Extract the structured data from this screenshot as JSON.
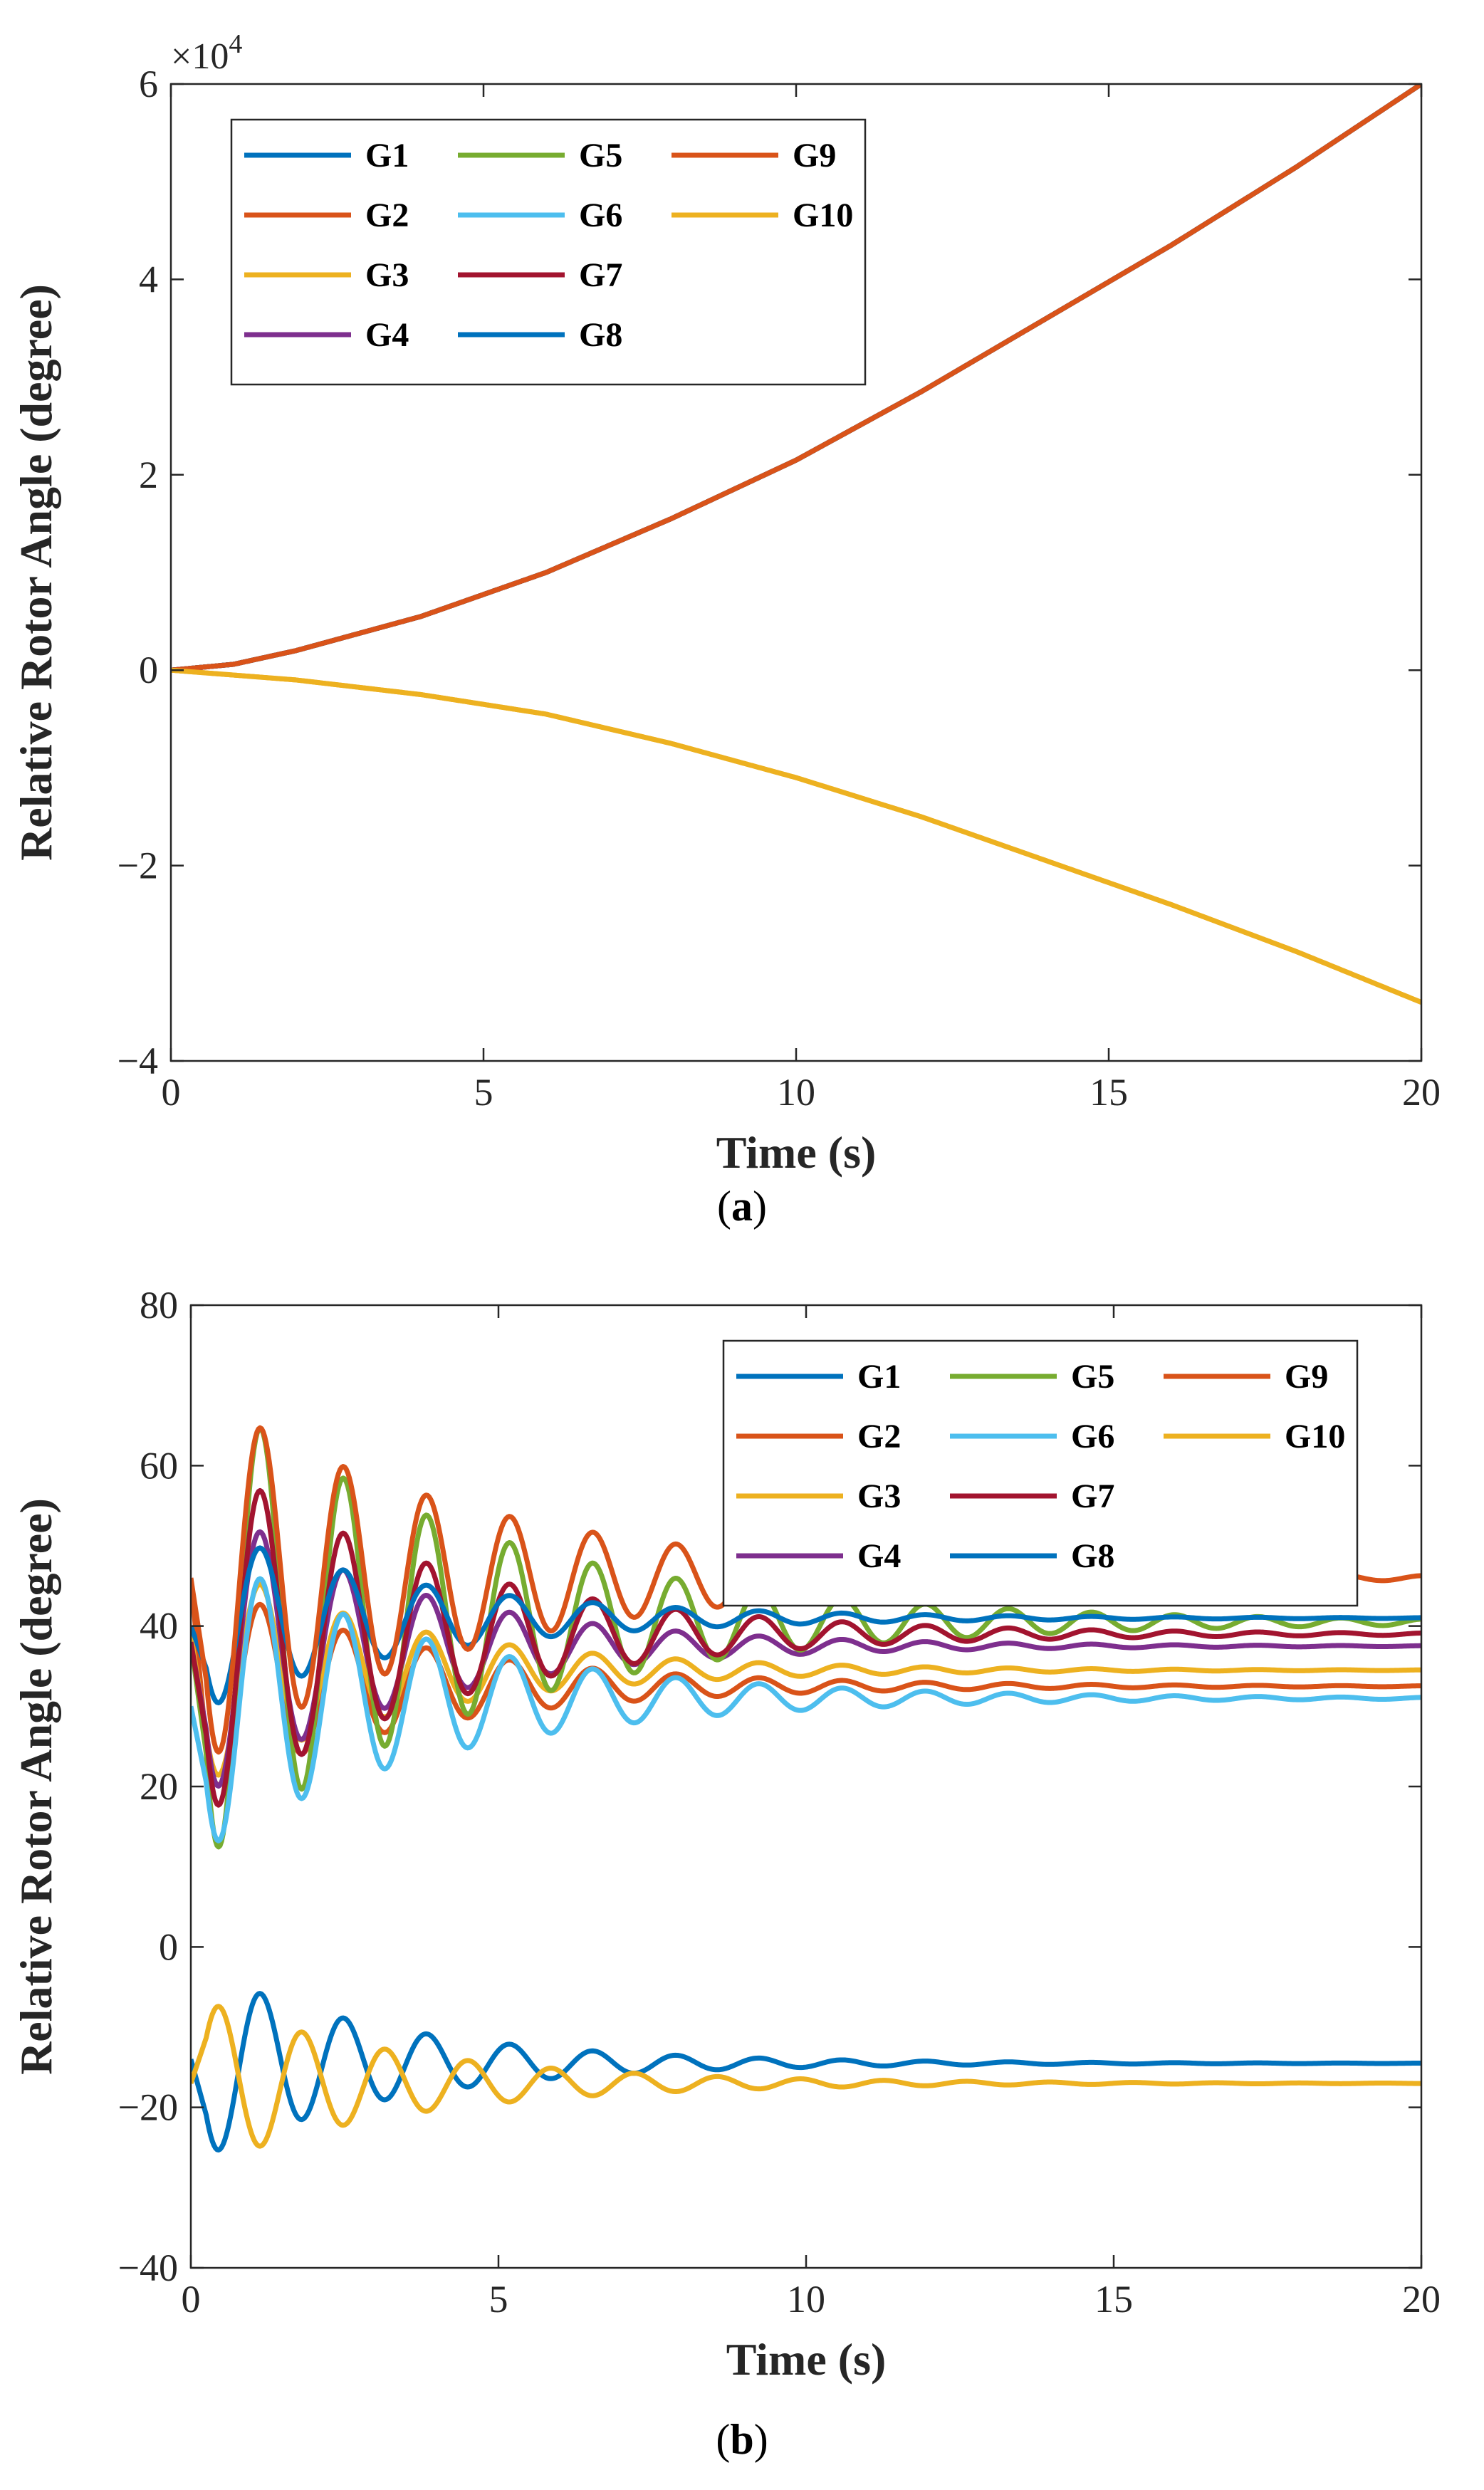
{
  "chart_data": [
    {
      "type": "line",
      "panel_label": "a",
      "xlabel": "Time (s)",
      "ylabel": "Relative Rotor Angle (degree)",
      "xlim": [
        0,
        20
      ],
      "ylim": [
        -40000,
        60000
      ],
      "xticks": [
        0,
        5,
        10,
        15,
        20
      ],
      "yticks": [
        -40000,
        -20000,
        0,
        20000,
        40000,
        60000
      ],
      "ytick_labels": [
        "−4",
        "−2",
        "0",
        "2",
        "4",
        "6"
      ],
      "y_exponent_label": "×10",
      "y_exponent_power": "4",
      "legend_position": "top-left",
      "series": [
        {
          "name": "G1",
          "color": "#0072BD",
          "x": [
            0,
            1,
            2,
            4,
            6,
            8,
            10,
            12,
            14,
            16,
            18,
            20
          ],
          "values": [
            0,
            600,
            2000,
            5500,
            10000,
            15500,
            21500,
            28500,
            36000,
            43500,
            51500,
            60000
          ]
        },
        {
          "name": "G2",
          "color": "#D95319",
          "x": [
            0,
            1,
            2,
            4,
            6,
            8,
            10,
            12,
            14,
            16,
            18,
            20
          ],
          "values": [
            0,
            600,
            2000,
            5500,
            10000,
            15500,
            21500,
            28500,
            36000,
            43500,
            51500,
            60000
          ]
        },
        {
          "name": "G3",
          "color": "#EDB120",
          "x": [
            0,
            1,
            2,
            4,
            6,
            8,
            10,
            12,
            14,
            16,
            18,
            20
          ],
          "values": [
            0,
            -500,
            -1000,
            -2500,
            -4500,
            -7500,
            -11000,
            -15000,
            -19500,
            -24000,
            -28800,
            -34000
          ]
        },
        {
          "name": "G4",
          "color": "#7E2F8E",
          "x": [
            0,
            1,
            2,
            4,
            6,
            8,
            10,
            12,
            14,
            16,
            18,
            20
          ],
          "values": [
            0,
            600,
            2000,
            5500,
            10000,
            15500,
            21500,
            28500,
            36000,
            43500,
            51500,
            60000
          ]
        },
        {
          "name": "G5",
          "color": "#77AC30",
          "x": [
            0,
            1,
            2,
            4,
            6,
            8,
            10,
            12,
            14,
            16,
            18,
            20
          ],
          "values": [
            0,
            600,
            2000,
            5500,
            10000,
            15500,
            21500,
            28500,
            36000,
            43500,
            51500,
            60000
          ]
        },
        {
          "name": "G6",
          "color": "#4DBEEE",
          "x": [
            0,
            1,
            2,
            4,
            6,
            8,
            10,
            12,
            14,
            16,
            18,
            20
          ],
          "values": [
            0,
            600,
            2000,
            5500,
            10000,
            15500,
            21500,
            28500,
            36000,
            43500,
            51500,
            60000
          ]
        },
        {
          "name": "G7",
          "color": "#A2142F",
          "x": [
            0,
            1,
            2,
            4,
            6,
            8,
            10,
            12,
            14,
            16,
            18,
            20
          ],
          "values": [
            0,
            600,
            2000,
            5500,
            10000,
            15500,
            21500,
            28500,
            36000,
            43500,
            51500,
            60000
          ]
        },
        {
          "name": "G8",
          "color": "#0072BD",
          "x": [
            0,
            1,
            2,
            4,
            6,
            8,
            10,
            12,
            14,
            16,
            18,
            20
          ],
          "values": [
            0,
            600,
            2000,
            5500,
            10000,
            15500,
            21500,
            28500,
            36000,
            43500,
            51500,
            60000
          ]
        },
        {
          "name": "G9",
          "color": "#D95319",
          "x": [
            0,
            1,
            2,
            4,
            6,
            8,
            10,
            12,
            14,
            16,
            18,
            20
          ],
          "values": [
            0,
            600,
            2000,
            5500,
            10000,
            15500,
            21500,
            28500,
            36000,
            43500,
            51500,
            60000
          ]
        },
        {
          "name": "G10",
          "color": "#EDB120",
          "x": [
            0,
            1,
            2,
            4,
            6,
            8,
            10,
            12,
            14,
            16,
            18,
            20
          ],
          "values": [
            0,
            -500,
            -1000,
            -2500,
            -4500,
            -7500,
            -11000,
            -15000,
            -19500,
            -24000,
            -28800,
            -34000
          ]
        }
      ]
    },
    {
      "type": "line",
      "panel_label": "b",
      "xlabel": "Time (s)",
      "ylabel": "Relative Rotor Angle (degree)",
      "xlim": [
        0,
        20
      ],
      "ylim": [
        -40,
        80
      ],
      "xticks": [
        0,
        5,
        10,
        15,
        20
      ],
      "yticks": [
        -40,
        -20,
        0,
        20,
        40,
        60,
        80
      ],
      "ytick_labels": [
        "−40",
        "−20",
        "0",
        "20",
        "40",
        "60",
        "80"
      ],
      "legend_position": "top-right",
      "series": [
        {
          "name": "G1",
          "color": "#0072BD",
          "model": {
            "final": -14.5,
            "a0": 12.5,
            "phase": 1.0,
            "freq": 0.74,
            "decay": 0.32,
            "init": -14
          }
        },
        {
          "name": "G2",
          "color": "#D95319",
          "model": {
            "final": 32.5,
            "a0": 14,
            "phase": 1.0,
            "freq": 0.74,
            "decay": 0.28,
            "init": 46
          }
        },
        {
          "name": "G3",
          "color": "#EDB120",
          "model": {
            "final": 34.5,
            "a0": 15,
            "phase": 1.0,
            "freq": 0.74,
            "decay": 0.3,
            "init": 39
          }
        },
        {
          "name": "G4",
          "color": "#7E2F8E",
          "model": {
            "final": 37.5,
            "a0": 20,
            "phase": 1.0,
            "freq": 0.74,
            "decay": 0.3,
            "init": 38
          }
        },
        {
          "name": "G5",
          "color": "#77AC30",
          "model": {
            "final": 40.5,
            "a0": 31,
            "phase": 1.0,
            "freq": 0.74,
            "decay": 0.22,
            "init": 38
          }
        },
        {
          "name": "G6",
          "color": "#4DBEEE",
          "model": {
            "final": 31,
            "a0": 20,
            "phase": 1.0,
            "freq": 0.74,
            "decay": 0.26,
            "init": 30
          }
        },
        {
          "name": "G7",
          "color": "#A2142F",
          "model": {
            "final": 39,
            "a0": 24,
            "phase": 1.0,
            "freq": 0.74,
            "decay": 0.26,
            "init": 38
          }
        },
        {
          "name": "G8",
          "color": "#0072BD",
          "model": {
            "final": 41,
            "a0": 12,
            "phase": 1.0,
            "freq": 0.74,
            "decay": 0.28,
            "init": 40
          }
        },
        {
          "name": "G9",
          "color": "#D95319",
          "model": {
            "final": 46,
            "a0": 24,
            "phase": 1.0,
            "freq": 0.74,
            "decay": 0.22,
            "init": 46
          }
        },
        {
          "name": "G10",
          "color": "#EDB120",
          "model": {
            "final": -17,
            "a0": 11,
            "phase": 4.14,
            "freq": 0.74,
            "decay": 0.3,
            "init": -17
          }
        }
      ]
    }
  ]
}
